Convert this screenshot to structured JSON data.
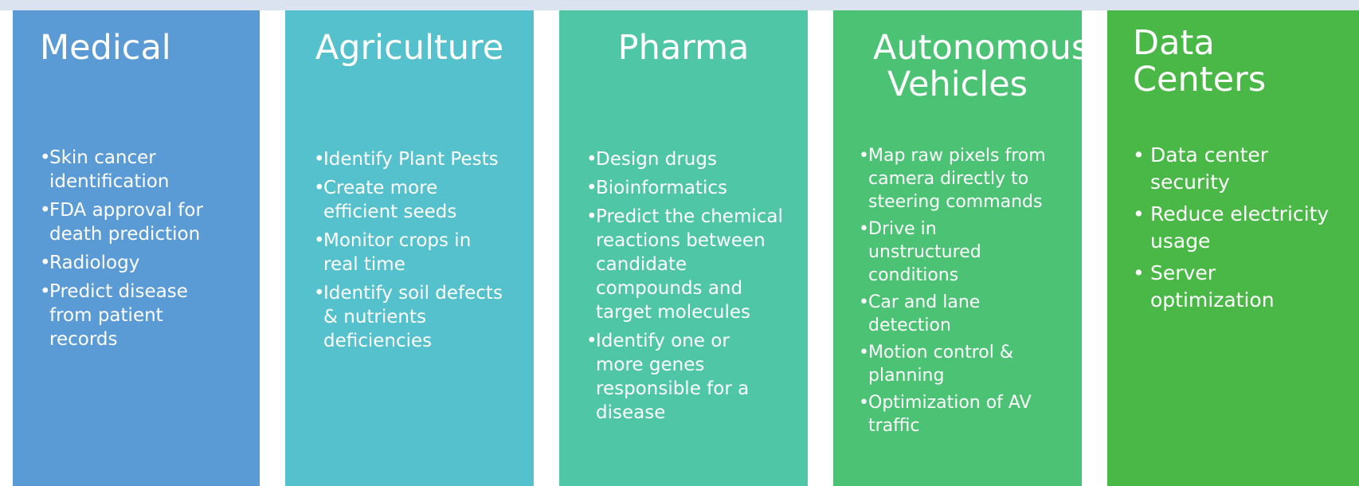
{
  "columns": [
    {
      "title": "Medical",
      "color": "#5b9bd5",
      "items": [
        "Skin cancer identification",
        "FDA approval for death prediction",
        "Radiology",
        "Predict disease from patient records"
      ]
    },
    {
      "title": "Agriculture",
      "color": "#55c1cc",
      "items": [
        "Identify Plant Pests",
        "Create more efficient seeds",
        "Monitor crops in real time",
        "Identify soil defects & nutrients deficiencies"
      ]
    },
    {
      "title": "Pharma",
      "color": "#4fc6a6",
      "items": [
        "Design drugs",
        "Bioinformatics",
        "Predict the chemical reactions between candidate compounds and target molecules",
        "Identify one or more genes responsible for a disease"
      ]
    },
    {
      "title": "Autonomous Vehicles",
      "color": "#4cc274",
      "items": [
        "Map raw pixels from camera directly to steering commands",
        "Drive in unstructured conditions",
        "Car and lane detection",
        "Motion control & planning",
        "Optimization of AV traffic"
      ]
    },
    {
      "title": "Data Centers",
      "color": "#4ab847",
      "items": [
        "Data center security",
        "Reduce electricity usage",
        "Server optimization"
      ]
    }
  ]
}
